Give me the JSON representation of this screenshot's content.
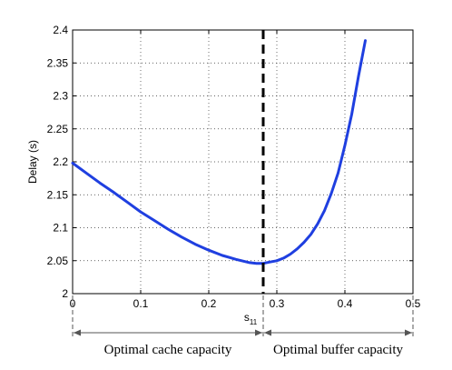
{
  "chart_data": {
    "type": "line",
    "ylabel": "Delay (s)",
    "xlim": [
      0,
      0.5
    ],
    "ylim": [
      2,
      2.4
    ],
    "xticks": [
      "0",
      "0.1",
      "0.2",
      "0.3",
      "0.4",
      "0.5"
    ],
    "yticks": [
      "2",
      "2.05",
      "2.1",
      "2.15",
      "2.2",
      "2.25",
      "2.3",
      "2.35",
      "2.4"
    ],
    "grid": true,
    "series": [
      {
        "color": "#1f3fe0",
        "x": [
          0,
          0.02,
          0.04,
          0.06,
          0.08,
          0.1,
          0.12,
          0.14,
          0.16,
          0.18,
          0.2,
          0.22,
          0.24,
          0.26,
          0.27,
          0.28,
          0.29,
          0.3,
          0.31,
          0.32,
          0.33,
          0.34,
          0.35,
          0.36,
          0.37,
          0.38,
          0.39,
          0.4,
          0.41,
          0.42,
          0.43
        ],
        "y": [
          2.198,
          2.183,
          2.168,
          2.154,
          2.139,
          2.124,
          2.111,
          2.098,
          2.086,
          2.075,
          2.066,
          2.058,
          2.052,
          2.047,
          2.046,
          2.046,
          2.048,
          2.05,
          2.054,
          2.06,
          2.068,
          2.078,
          2.09,
          2.106,
          2.126,
          2.152,
          2.183,
          2.225,
          2.272,
          2.33,
          2.384
        ]
      }
    ],
    "reference_line": {
      "x": 0.28,
      "label": "s",
      "label_sub": "11",
      "style": "dashed",
      "color": "#000000"
    },
    "regions": [
      {
        "label": "Optimal cache capacity",
        "from": 0,
        "to": 0.28
      },
      {
        "label": "Optimal buffer capacity",
        "from": 0.28,
        "to": 0.5
      }
    ]
  }
}
